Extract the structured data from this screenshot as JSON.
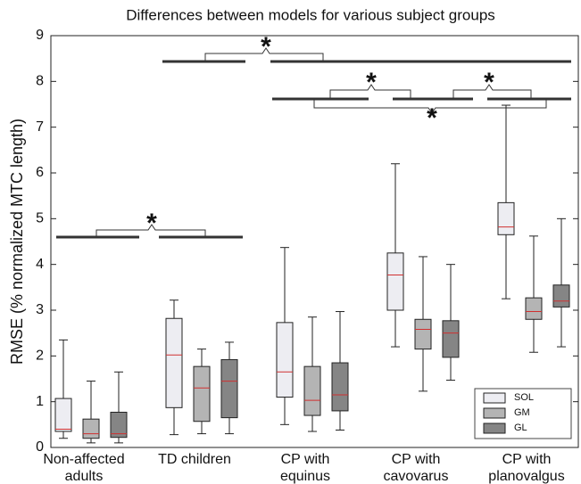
{
  "chart_data": {
    "type": "box",
    "title": "Differences between models for various subject groups",
    "y_label": "RMSE (% normalized MTC length)",
    "categories": [
      "Non-affected\nadults",
      "TD children",
      "CP with\nequinus",
      "CP with\ncavovarus",
      "CP with\nplanovalgus"
    ],
    "series": [
      {
        "name": "SOL",
        "color": "#ededf2",
        "min": [
          0.2,
          0.28,
          0.5,
          2.2,
          3.25
        ],
        "q1": [
          0.35,
          0.87,
          1.1,
          3.0,
          4.65
        ],
        "median": [
          0.4,
          2.02,
          1.65,
          3.77,
          4.82
        ],
        "q3": [
          1.07,
          2.82,
          2.73,
          4.25,
          5.35
        ],
        "max": [
          2.35,
          3.22,
          4.37,
          6.2,
          7.48
        ]
      },
      {
        "name": "GM",
        "color": "#b4b4b4",
        "min": [
          0.1,
          0.3,
          0.35,
          1.23,
          2.08
        ],
        "q1": [
          0.2,
          0.57,
          0.7,
          2.15,
          2.8
        ],
        "median": [
          0.3,
          1.3,
          1.03,
          2.58,
          2.97
        ],
        "q3": [
          0.62,
          1.77,
          1.77,
          2.8,
          3.27
        ],
        "max": [
          1.45,
          2.15,
          2.85,
          4.17,
          4.62
        ]
      },
      {
        "name": "GL",
        "color": "#858585",
        "min": [
          0.1,
          0.3,
          0.38,
          1.47,
          2.2
        ],
        "q1": [
          0.22,
          0.65,
          0.8,
          1.97,
          3.07
        ],
        "median": [
          0.3,
          1.45,
          1.15,
          2.5,
          3.2
        ],
        "q3": [
          0.77,
          1.92,
          1.85,
          2.77,
          3.55
        ],
        "max": [
          1.65,
          2.3,
          2.97,
          4.0,
          5.0
        ]
      }
    ],
    "median_color": "#d03030",
    "ylim": [
      0,
      9
    ],
    "yticks": [
      0,
      1,
      2,
      3,
      4,
      5,
      6,
      7,
      8,
      9
    ],
    "legend": "lower right",
    "annotations": [
      "*",
      "*",
      "*",
      "*",
      "*"
    ]
  }
}
